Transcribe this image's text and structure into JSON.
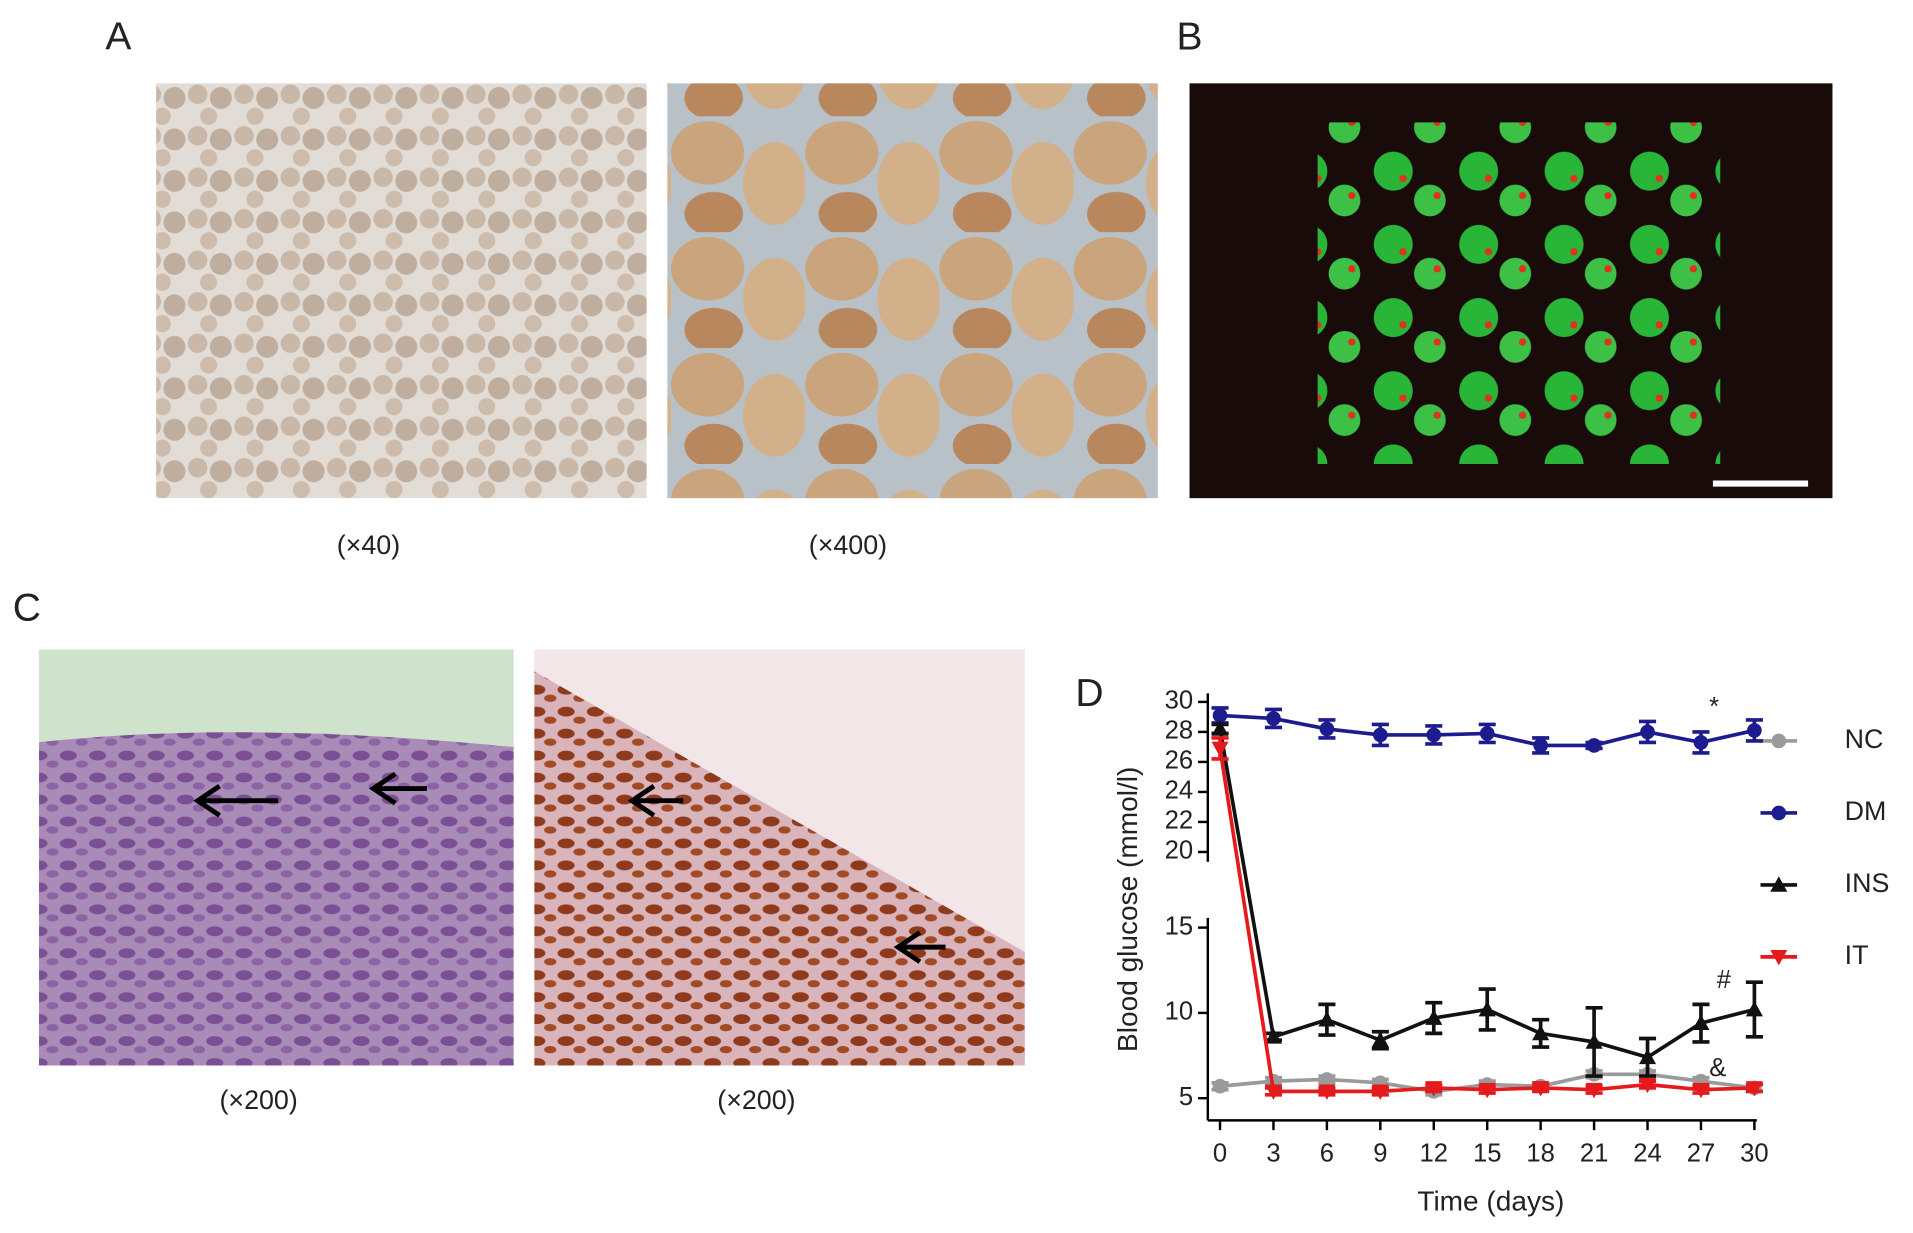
{
  "panels": {
    "a": "A",
    "b": "B",
    "c": "C",
    "d": "D"
  },
  "captions": {
    "a_left": "(×40)",
    "a_right": "(×400)",
    "c_left": "(×200)",
    "c_right": "(×200)"
  },
  "chart_data": {
    "type": "line",
    "y_label": "Blood glucose (mmol/l)",
    "x_label": "Time (days)",
    "x": [
      0,
      3,
      6,
      9,
      12,
      15,
      18,
      21,
      24,
      27,
      30
    ],
    "xlim": [
      0,
      30
    ],
    "xticks": [
      0,
      3,
      6,
      9,
      12,
      15,
      18,
      21,
      24,
      27,
      30
    ],
    "ylim": [
      3.7,
      30
    ],
    "ybreak": [
      15,
      20
    ],
    "yticks": [
      5,
      10,
      15,
      20,
      22,
      24,
      26,
      28,
      30
    ],
    "legend": "right",
    "series": [
      {
        "name": "NC",
        "color": "#9a9a9a",
        "marker": "circle",
        "values": [
          5.7,
          6.0,
          6.1,
          5.9,
          5.4,
          5.8,
          5.7,
          6.4,
          6.4,
          6.0,
          5.6
        ],
        "errors": [
          0.2,
          0.2,
          0.2,
          0.2,
          0.2,
          0.2,
          0.2,
          0.2,
          0.2,
          0.2,
          0.2
        ]
      },
      {
        "name": "DM",
        "color": "#1c1c8f",
        "marker": "circle",
        "values": [
          29.1,
          28.9,
          28.2,
          27.8,
          27.8,
          27.9,
          27.1,
          27.1,
          28.0,
          27.3,
          28.1
        ],
        "errors": [
          0.5,
          0.6,
          0.6,
          0.7,
          0.6,
          0.6,
          0.5,
          0.2,
          0.7,
          0.7,
          0.7
        ]
      },
      {
        "name": "INS",
        "color": "#111111",
        "marker": "triangle-up",
        "values": [
          28.2,
          8.6,
          9.6,
          8.4,
          9.7,
          10.2,
          8.8,
          8.3,
          7.4,
          9.4,
          10.2
        ],
        "errors": [
          0.3,
          0.2,
          0.9,
          0.5,
          0.9,
          1.2,
          0.8,
          2.0,
          1.1,
          1.1,
          1.6
        ]
      },
      {
        "name": "IT",
        "color": "#e41a1c",
        "marker": "triangle-down",
        "values": [
          26.9,
          5.4,
          5.4,
          5.4,
          5.6,
          5.5,
          5.6,
          5.5,
          5.8,
          5.5,
          5.6
        ],
        "errors": [
          0.7,
          0.2,
          0.2,
          0.2,
          0.2,
          0.2,
          0.2,
          0.2,
          0.2,
          0.2,
          0.2
        ]
      }
    ],
    "annotations": [
      "*",
      "#",
      "&"
    ]
  }
}
